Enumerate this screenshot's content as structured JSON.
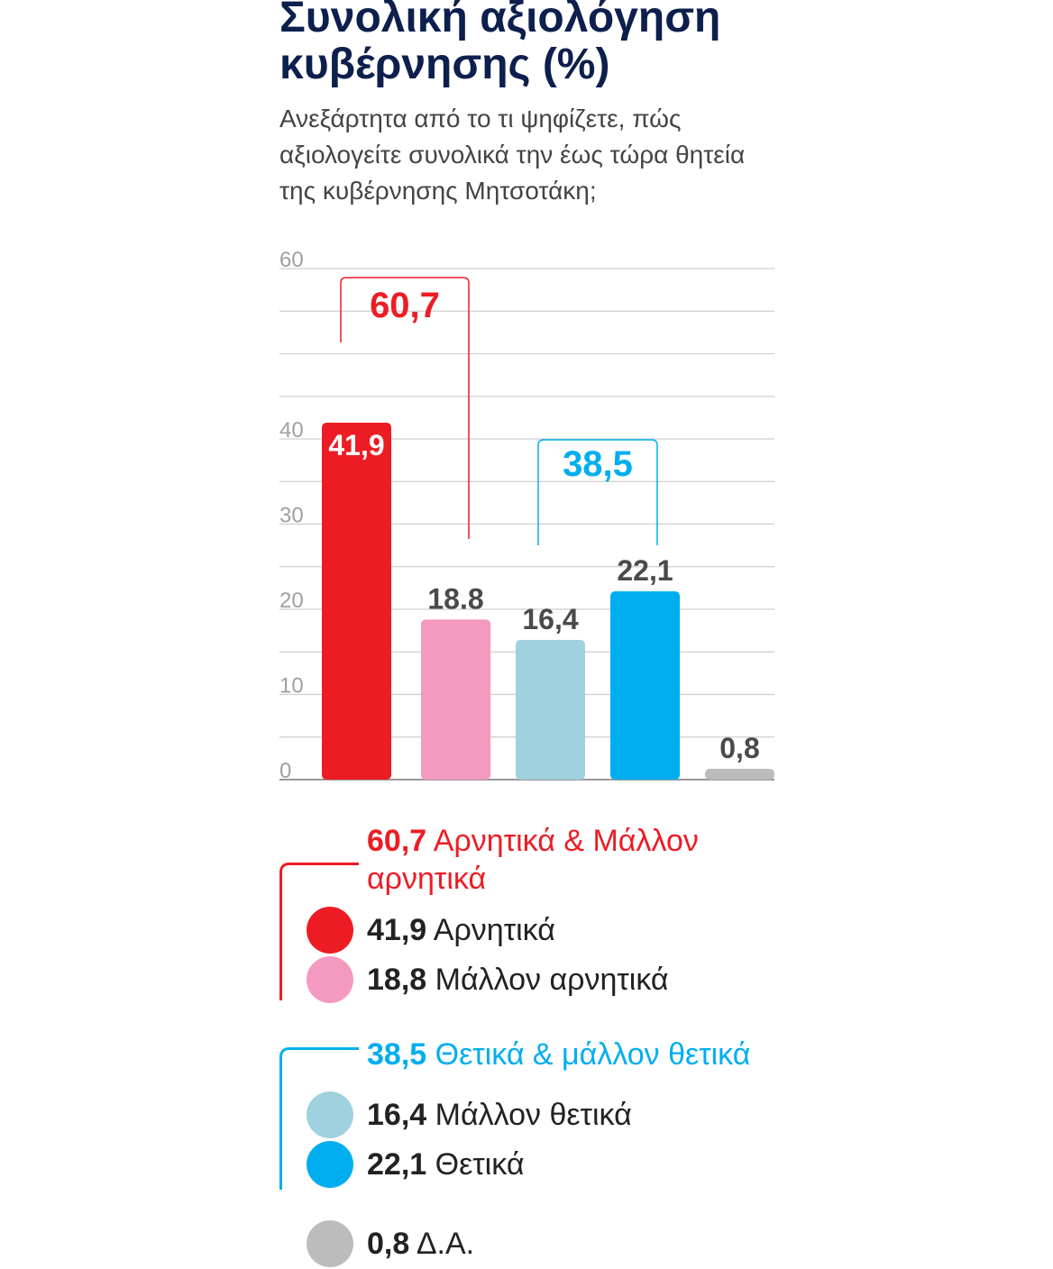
{
  "title": "Συνολική αξιολόγηση κυβέρνησης (%)",
  "subtitle": "Ανεξάρτητα από το τι ψηφίζετε, πώς αξιολογείτε συνολικά την έως τώρα θητεία της κυβέρνησης Μητσοτάκη;",
  "chart_data": {
    "type": "bar",
    "categories": [
      "Αρνητικά",
      "Μάλλον αρνητικά",
      "Μάλλον θετικά",
      "Θετικά",
      "Δ.Α."
    ],
    "values": [
      41.9,
      18.8,
      16.4,
      22.1,
      0.8
    ],
    "value_labels": [
      "41,9",
      "18.8",
      "16,4",
      "22,1",
      "0,8"
    ],
    "colors": [
      "#ed1c24",
      "#f49ac1",
      "#9fd1de",
      "#00aeef",
      "#bcbcbc"
    ],
    "ylim": [
      0,
      60
    ],
    "yticks": [
      0,
      10,
      20,
      30,
      40,
      60
    ],
    "ytick_labels": [
      "0",
      "10",
      "20",
      "30",
      "40",
      "60"
    ],
    "grid": true,
    "groups": [
      {
        "label": "60,7",
        "value": 60.7,
        "bars": [
          0,
          1
        ],
        "color": "#ed1c24"
      },
      {
        "label": "38,5",
        "value": 38.5,
        "bars": [
          2,
          3
        ],
        "color": "#00aeef"
      }
    ]
  },
  "legend": {
    "negative_group": {
      "value": "60,7",
      "text": "Αρνητικά & Μάλλον αρνητικά",
      "color": "#ed1c24"
    },
    "positive_group": {
      "value": "38,5",
      "text": "Θετικά & μάλλον θετικά",
      "color": "#00aeef"
    },
    "items": [
      {
        "value": "41,9",
        "text": "Αρνητικά",
        "color": "#ed1c24"
      },
      {
        "value": "18,8",
        "text": "Μάλλον αρνητικά",
        "color": "#f49ac1"
      },
      {
        "value": "16,4",
        "text": "Μάλλον θετικά",
        "color": "#9fd1de"
      },
      {
        "value": "22,1",
        "text": "Θετικά",
        "color": "#00aeef"
      },
      {
        "value": "0,8",
        "text": "Δ.Α.",
        "color": "#bcbcbc"
      }
    ]
  }
}
